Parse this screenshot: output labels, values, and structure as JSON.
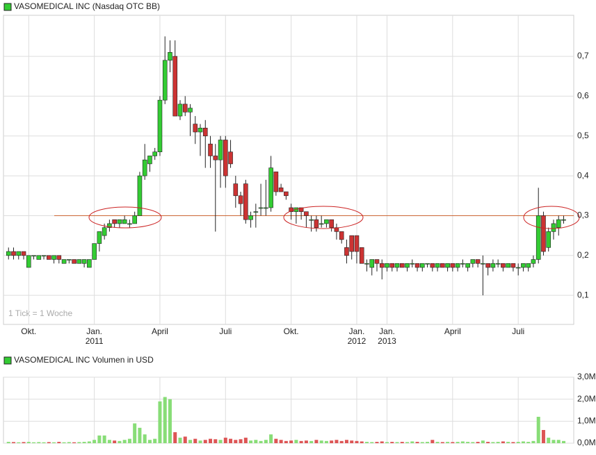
{
  "chart_data": [
    {
      "type": "candlestick",
      "title": "VASOMEDICAL INC (Nasdaq OTC BB)",
      "annotation": "1 Tick = 1 Woche",
      "up_color": "#33cc33",
      "down_color": "#cc3333",
      "hline": 0.3,
      "hline_color": "#cc6633",
      "grid": true,
      "xlim": [
        -1,
        112
      ],
      "xticks": [
        {
          "value": 4,
          "label": "Okt."
        },
        {
          "value": 17,
          "label": "Jan. 2011"
        },
        {
          "value": 30,
          "label": "April"
        },
        {
          "value": 43,
          "label": "Juli"
        },
        {
          "value": 56,
          "label": "Okt."
        },
        {
          "value": 69,
          "label": "Jan. 2012"
        },
        {
          "value": 75,
          "label": "Jan. 2013"
        },
        {
          "value": 88,
          "label": "April"
        },
        {
          "value": 101,
          "label": "Juli"
        }
      ],
      "ylim": [
        0.027,
        0.803
      ],
      "yticks": [
        {
          "value": 0.1,
          "label": "0,1"
        },
        {
          "value": 0.2,
          "label": "0,2"
        },
        {
          "value": 0.3,
          "label": "0,3"
        },
        {
          "value": 0.4,
          "label": "0,4"
        },
        {
          "value": 0.5,
          "label": "0,5"
        },
        {
          "value": 0.6,
          "label": "0,6"
        },
        {
          "value": 0.7,
          "label": "0,7"
        }
      ],
      "open": [
        0.2,
        0.21,
        0.2,
        0.21,
        0.17,
        0.2,
        0.19,
        0.2,
        0.2,
        0.19,
        0.2,
        0.18,
        0.19,
        0.19,
        0.18,
        0.18,
        0.17,
        0.19,
        0.23,
        0.25,
        0.27,
        0.29,
        0.28,
        0.28,
        0.28,
        0.28,
        0.3,
        0.4,
        0.43,
        0.45,
        0.46,
        0.59,
        0.69,
        0.7,
        0.55,
        0.58,
        0.56,
        0.53,
        0.51,
        0.52,
        0.48,
        0.45,
        0.44,
        0.49,
        0.46,
        0.38,
        0.35,
        0.38,
        0.29,
        0.31,
        0.32,
        0.32,
        0.32,
        0.41,
        0.37,
        0.36,
        0.32,
        0.31,
        0.32,
        0.31,
        0.29,
        0.29,
        0.28,
        0.28,
        0.29,
        0.27,
        0.26,
        0.22,
        0.25,
        0.25,
        0.22,
        0.18,
        0.17,
        0.19,
        0.18,
        0.17,
        0.18,
        0.17,
        0.18,
        0.17,
        0.18,
        0.18,
        0.17,
        0.18,
        0.18,
        0.17,
        0.18,
        0.17,
        0.18,
        0.17,
        0.18,
        0.17,
        0.18,
        0.19,
        0.18,
        0.18,
        0.17,
        0.18,
        0.18,
        0.17,
        0.18,
        0.17,
        0.17,
        0.17,
        0.18,
        0.19,
        0.3,
        0.22,
        0.26,
        0.27,
        0.29
      ],
      "high": [
        0.22,
        0.22,
        0.21,
        0.21,
        0.2,
        0.2,
        0.2,
        0.2,
        0.2,
        0.2,
        0.2,
        0.19,
        0.19,
        0.19,
        0.19,
        0.19,
        0.19,
        0.23,
        0.26,
        0.28,
        0.29,
        0.29,
        0.29,
        0.3,
        0.29,
        0.31,
        0.41,
        0.48,
        0.45,
        0.47,
        0.6,
        0.75,
        0.74,
        0.74,
        0.59,
        0.6,
        0.58,
        0.55,
        0.53,
        0.54,
        0.5,
        0.48,
        0.5,
        0.5,
        0.49,
        0.4,
        0.36,
        0.39,
        0.31,
        0.33,
        0.38,
        0.39,
        0.45,
        0.41,
        0.38,
        0.36,
        0.33,
        0.32,
        0.32,
        0.31,
        0.3,
        0.3,
        0.3,
        0.29,
        0.29,
        0.28,
        0.26,
        0.24,
        0.25,
        0.25,
        0.22,
        0.19,
        0.19,
        0.19,
        0.19,
        0.18,
        0.18,
        0.18,
        0.18,
        0.18,
        0.19,
        0.18,
        0.18,
        0.18,
        0.18,
        0.18,
        0.18,
        0.18,
        0.18,
        0.18,
        0.19,
        0.18,
        0.19,
        0.19,
        0.2,
        0.18,
        0.19,
        0.19,
        0.18,
        0.18,
        0.18,
        0.18,
        0.18,
        0.18,
        0.2,
        0.37,
        0.31,
        0.27,
        0.29,
        0.3,
        0.3
      ],
      "low": [
        0.19,
        0.19,
        0.19,
        0.19,
        0.17,
        0.19,
        0.19,
        0.19,
        0.19,
        0.18,
        0.18,
        0.18,
        0.18,
        0.18,
        0.18,
        0.17,
        0.17,
        0.19,
        0.21,
        0.24,
        0.26,
        0.27,
        0.27,
        0.28,
        0.27,
        0.28,
        0.3,
        0.39,
        0.41,
        0.44,
        0.45,
        0.58,
        0.66,
        0.55,
        0.54,
        0.55,
        0.5,
        0.48,
        0.45,
        0.42,
        0.42,
        0.26,
        0.37,
        0.37,
        0.42,
        0.32,
        0.3,
        0.28,
        0.27,
        0.27,
        0.3,
        0.3,
        0.31,
        0.35,
        0.36,
        0.34,
        0.29,
        0.28,
        0.29,
        0.27,
        0.26,
        0.26,
        0.27,
        0.27,
        0.26,
        0.24,
        0.23,
        0.18,
        0.19,
        0.18,
        0.18,
        0.16,
        0.15,
        0.16,
        0.14,
        0.16,
        0.16,
        0.16,
        0.17,
        0.16,
        0.17,
        0.16,
        0.16,
        0.17,
        0.16,
        0.16,
        0.17,
        0.16,
        0.16,
        0.16,
        0.17,
        0.16,
        0.17,
        0.17,
        0.1,
        0.15,
        0.16,
        0.17,
        0.16,
        0.17,
        0.16,
        0.15,
        0.16,
        0.16,
        0.17,
        0.18,
        0.2,
        0.21,
        0.24,
        0.25,
        0.28
      ],
      "close": [
        0.21,
        0.2,
        0.21,
        0.2,
        0.2,
        0.2,
        0.2,
        0.2,
        0.19,
        0.2,
        0.19,
        0.19,
        0.19,
        0.18,
        0.19,
        0.19,
        0.19,
        0.23,
        0.26,
        0.27,
        0.28,
        0.28,
        0.29,
        0.29,
        0.28,
        0.3,
        0.4,
        0.44,
        0.45,
        0.46,
        0.59,
        0.69,
        0.71,
        0.55,
        0.58,
        0.56,
        0.57,
        0.51,
        0.52,
        0.5,
        0.45,
        0.44,
        0.49,
        0.4,
        0.43,
        0.35,
        0.33,
        0.29,
        0.3,
        0.31,
        0.32,
        0.32,
        0.42,
        0.36,
        0.36,
        0.35,
        0.31,
        0.32,
        0.31,
        0.3,
        0.29,
        0.27,
        0.28,
        0.29,
        0.27,
        0.26,
        0.24,
        0.2,
        0.21,
        0.21,
        0.18,
        0.18,
        0.19,
        0.18,
        0.17,
        0.18,
        0.17,
        0.18,
        0.17,
        0.18,
        0.18,
        0.17,
        0.18,
        0.18,
        0.17,
        0.18,
        0.17,
        0.18,
        0.17,
        0.18,
        0.18,
        0.18,
        0.19,
        0.18,
        0.18,
        0.17,
        0.18,
        0.18,
        0.17,
        0.18,
        0.17,
        0.17,
        0.18,
        0.18,
        0.19,
        0.3,
        0.21,
        0.26,
        0.28,
        0.29,
        0.29
      ]
    },
    {
      "type": "volume",
      "title": "VASOMEDICAL INC Volumen in USD",
      "up_color": "#88dd77",
      "down_color": "#dd5555",
      "grid": true,
      "ylim": [
        0,
        3000000
      ],
      "yticks": [
        {
          "value": 0,
          "label": "0,0M"
        },
        {
          "value": 1000000,
          "label": "1,0M"
        },
        {
          "value": 2000000,
          "label": "2,0M"
        },
        {
          "value": 3000000,
          "label": "3,0M"
        }
      ],
      "values": [
        60000,
        50000,
        40000,
        50000,
        60000,
        40000,
        50000,
        40000,
        50000,
        40000,
        60000,
        40000,
        50000,
        40000,
        50000,
        60000,
        80000,
        150000,
        350000,
        350000,
        150000,
        120000,
        100000,
        150000,
        200000,
        900000,
        700000,
        400000,
        150000,
        200000,
        1900000,
        2100000,
        2000000,
        500000,
        250000,
        300000,
        150000,
        200000,
        120000,
        150000,
        200000,
        180000,
        150000,
        250000,
        200000,
        150000,
        180000,
        250000,
        120000,
        150000,
        100000,
        150000,
        400000,
        200000,
        150000,
        100000,
        120000,
        150000,
        100000,
        120000,
        100000,
        150000,
        120000,
        100000,
        120000,
        150000,
        100000,
        150000,
        120000,
        100000,
        80000,
        60000,
        50000,
        60000,
        80000,
        50000,
        60000,
        50000,
        60000,
        50000,
        80000,
        60000,
        50000,
        60000,
        150000,
        60000,
        50000,
        60000,
        50000,
        60000,
        80000,
        60000,
        50000,
        60000,
        120000,
        60000,
        50000,
        60000,
        80000,
        60000,
        50000,
        60000,
        80000,
        60000,
        100000,
        1200000,
        600000,
        250000,
        150000,
        150000,
        100000
      ]
    }
  ]
}
